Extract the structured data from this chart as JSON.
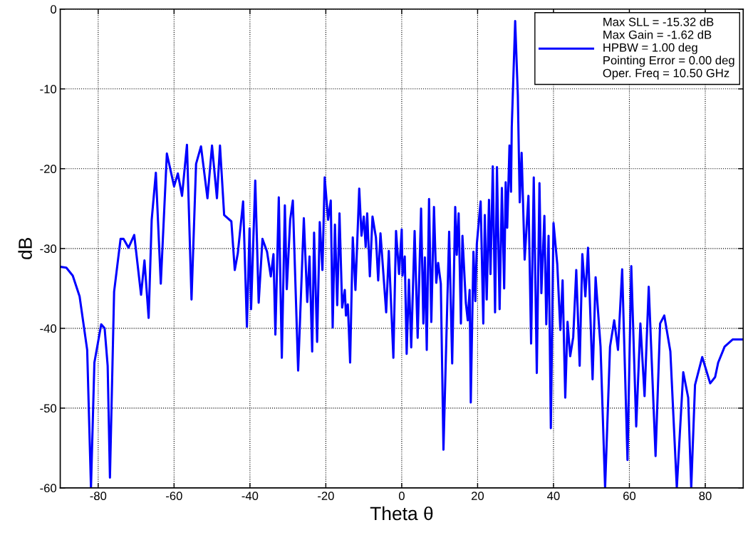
{
  "chart_data": {
    "type": "line",
    "xlabel": "Theta θ",
    "ylabel": "dB",
    "xlim": [
      -90,
      90
    ],
    "xticks": [
      -80,
      -60,
      -40,
      -20,
      0,
      20,
      40,
      60,
      80
    ],
    "ylim": [
      -60,
      0
    ],
    "yticks": [
      -60,
      -50,
      -40,
      -30,
      -20,
      -10,
      0
    ],
    "grid": true,
    "legend": "top right",
    "marker": "none",
    "line_style": "solid",
    "series": [
      {
        "name": "Max SLL = -15.32 dB\nMax Gain = -1.62 dB\nHPBW = 1.00 deg\nPointing Error = 0.00 deg\nOper. Freq = 10.50 GHz",
        "color": "#0000ff",
        "x": [
          -89.9,
          -88.4,
          -86.7,
          -84.9,
          -82.9,
          -81.9,
          -81.0,
          -79.2,
          -78.3,
          -77.5,
          -76.9,
          -75.8,
          -74.1,
          -73.3,
          -72.0,
          -70.5,
          -68.7,
          -67.8,
          -66.7,
          -65.9,
          -64.8,
          -63.5,
          -61.9,
          -60.0,
          -59.0,
          -57.9,
          -56.6,
          -55.4,
          -54.2,
          -52.9,
          -51.2,
          -50.0,
          -48.7,
          -47.9,
          -46.8,
          -44.9,
          -44.0,
          -43.2,
          -41.8,
          -40.8,
          -40.1,
          -39.7,
          -38.6,
          -37.7,
          -36.7,
          -35.5,
          -34.5,
          -33.8,
          -33.3,
          -32.4,
          -31.6,
          -30.8,
          -30.3,
          -29.4,
          -28.7,
          -27.3,
          -25.8,
          -24.9,
          -24.3,
          -23.6,
          -23.1,
          -22.3,
          -21.6,
          -20.9,
          -20.3,
          -19.4,
          -18.7,
          -18.2,
          -17.6,
          -17.0,
          -16.4,
          -15.7,
          -15.0,
          -14.7,
          -14.2,
          -13.6,
          -12.9,
          -12.2,
          -11.2,
          -10.6,
          -10.0,
          -9.5,
          -9.1,
          -8.4,
          -7.7,
          -6.8,
          -6.2,
          -5.6,
          -4.1,
          -3.4,
          -2.2,
          -1.5,
          -0.7,
          0.0,
          0.2,
          0.8,
          1.3,
          1.9,
          2.5,
          3.4,
          4.2,
          5.1,
          5.7,
          6.1,
          6.6,
          7.2,
          7.8,
          8.5,
          9.1,
          9.6,
          10.3,
          11.0,
          12.5,
          13.3,
          14.1,
          14.5,
          15.0,
          15.6,
          16.0,
          16.9,
          17.4,
          17.9,
          18.2,
          18.9,
          19.4,
          19.8,
          20.8,
          21.5,
          21.9,
          22.4,
          23.0,
          23.4,
          24.0,
          24.6,
          25.1,
          25.8,
          26.4,
          27.0,
          27.4,
          27.8,
          28.4,
          28.8,
          29.0,
          29.9,
          30.6,
          31.1,
          31.6,
          32.4,
          33.4,
          34.1,
          34.8,
          35.6,
          36.3,
          36.8,
          37.6,
          38.1,
          38.7,
          39.3,
          40.0,
          41.0,
          41.8,
          42.4,
          43.1,
          43.7,
          44.4,
          45.2,
          46.0,
          46.9,
          47.6,
          48.4,
          49.1,
          50.3,
          51.1,
          52.4,
          53.6,
          54.9,
          56.0,
          57.0,
          58.1,
          59.5,
          60.5,
          61.8,
          62.9,
          64.0,
          65.1,
          66.9,
          68.1,
          69.2,
          70.8,
          72.5,
          74.2,
          75.5,
          76.3,
          77.3,
          79.2,
          81.3,
          82.6,
          83.4,
          85.1,
          87.2,
          89.7
        ],
        "values": [
          -32.3,
          -32.4,
          -33.4,
          -36.0,
          -42.7,
          -60.0,
          -44.3,
          -39.5,
          -40.0,
          -44.7,
          -58.7,
          -35.4,
          -28.8,
          -28.8,
          -29.9,
          -28.3,
          -35.8,
          -31.5,
          -38.7,
          -26.4,
          -20.5,
          -34.4,
          -18.1,
          -22.2,
          -20.6,
          -23.4,
          -17.0,
          -36.4,
          -19.4,
          -17.2,
          -23.7,
          -17.1,
          -23.7,
          -17.1,
          -25.8,
          -26.6,
          -32.7,
          -30.6,
          -24.1,
          -39.8,
          -27.5,
          -37.6,
          -21.5,
          -36.8,
          -28.8,
          -30.4,
          -33.5,
          -30.7,
          -40.8,
          -23.6,
          -43.7,
          -24.6,
          -35.1,
          -26.4,
          -24.0,
          -45.3,
          -26.2,
          -36.7,
          -31.0,
          -42.9,
          -28.0,
          -41.7,
          -26.7,
          -32.7,
          -21.1,
          -26.4,
          -24.0,
          -39.9,
          -27.0,
          -37.1,
          -25.6,
          -37.4,
          -35.2,
          -38.4,
          -37.0,
          -44.3,
          -28.6,
          -35.2,
          -22.5,
          -28.4,
          -26.0,
          -29.8,
          -25.6,
          -33.5,
          -26.0,
          -28.6,
          -34.0,
          -28.1,
          -38.0,
          -30.3,
          -43.7,
          -27.8,
          -33.2,
          -27.6,
          -33.4,
          -31.0,
          -43.2,
          -33.9,
          -42.4,
          -27.8,
          -41.2,
          -25.0,
          -39.4,
          -31.1,
          -42.7,
          -23.8,
          -39.2,
          -24.8,
          -34.3,
          -31.8,
          -34.4,
          -55.2,
          -27.9,
          -44.4,
          -24.8,
          -30.8,
          -25.6,
          -39.4,
          -28.4,
          -36.8,
          -39.0,
          -35.2,
          -49.3,
          -30.4,
          -36.6,
          -29.4,
          -24.1,
          -39.4,
          -25.8,
          -36.4,
          -23.9,
          -33.2,
          -19.7,
          -38.0,
          -19.8,
          -37.6,
          -22.4,
          -35.0,
          -21.7,
          -27.4,
          -17.1,
          -22.9,
          -14.8,
          -1.5,
          -10.8,
          -24.2,
          -18.0,
          -31.4,
          -23.4,
          -41.9,
          -21.1,
          -45.6,
          -21.8,
          -35.6,
          -25.9,
          -39.5,
          -28.4,
          -52.5,
          -26.8,
          -32.0,
          -40.2,
          -34.0,
          -48.7,
          -39.2,
          -43.5,
          -41.1,
          -32.7,
          -44.7,
          -30.7,
          -36.0,
          -29.9,
          -46.4,
          -33.6,
          -42.3,
          -60.0,
          -42.3,
          -39.0,
          -42.7,
          -32.6,
          -56.5,
          -32.2,
          -52.3,
          -39.4,
          -48.5,
          -34.8,
          -56.0,
          -39.4,
          -38.4,
          -42.9,
          -60.0,
          -45.5,
          -48.7,
          -60.0,
          -47.1,
          -43.6,
          -46.9,
          -46.1,
          -44.3,
          -42.3,
          -41.4,
          -41.4
        ]
      }
    ]
  }
}
